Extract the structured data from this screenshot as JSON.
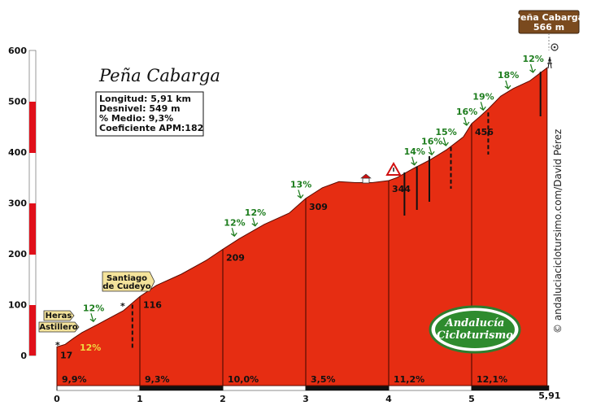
{
  "chart_data": {
    "type": "area",
    "title": "Peña Cabarga",
    "summit": {
      "name": "Peña Cabarga",
      "altitude": "566 m"
    },
    "stats": {
      "longitud": "Longitud: 5,91 km",
      "desnivel": "Desnivel: 549 m",
      "medio": "% Medio: 9,3%",
      "coeficiente": "Coeficiente APM:182"
    },
    "xlim": [
      0,
      5.91
    ],
    "ylim": [
      0,
      600
    ],
    "x_ticks": [
      "0",
      "1",
      "2",
      "3",
      "4",
      "5"
    ],
    "x_end_label": "5,91",
    "y_ticks": [
      "0",
      "100",
      "200",
      "300",
      "400",
      "500",
      "600"
    ],
    "x": [
      0,
      0.1,
      0.2,
      0.3,
      0.5,
      0.8,
      1.0,
      1.2,
      1.5,
      1.8,
      2.0,
      2.2,
      2.5,
      2.8,
      3.0,
      3.2,
      3.4,
      3.6,
      3.8,
      4.0,
      4.1,
      4.3,
      4.5,
      4.7,
      4.9,
      5.0,
      5.1,
      5.2,
      5.35,
      5.5,
      5.7,
      5.91
    ],
    "y": [
      17,
      22,
      34,
      45,
      62,
      88,
      116,
      138,
      160,
      187,
      209,
      230,
      258,
      280,
      309,
      330,
      342,
      340,
      340,
      344,
      350,
      368,
      385,
      405,
      430,
      456,
      470,
      485,
      510,
      525,
      540,
      566
    ],
    "km_labels": [
      {
        "x": 0,
        "y": 17,
        "label": "17"
      },
      {
        "x": 1,
        "y": 116,
        "label": "116"
      },
      {
        "x": 2,
        "y": 209,
        "label": "209"
      },
      {
        "x": 3,
        "y": 309,
        "label": "309"
      },
      {
        "x": 4,
        "y": 344,
        "label": "344"
      },
      {
        "x": 5,
        "y": 456,
        "label": "456"
      }
    ],
    "segment_gradients": [
      "9,9%",
      "9,3%",
      "10,0%",
      "3,5%",
      "11,2%",
      "12,1%"
    ],
    "slope_annotations": [
      {
        "x": 0.45,
        "y": 62,
        "label": "12%"
      },
      {
        "x": 2.15,
        "y": 230,
        "label": "12%"
      },
      {
        "x": 2.4,
        "y": 250,
        "label": "12%"
      },
      {
        "x": 2.95,
        "y": 305,
        "label": "13%"
      },
      {
        "x": 4.32,
        "y": 370,
        "label": "14%"
      },
      {
        "x": 4.53,
        "y": 390,
        "label": "16%"
      },
      {
        "x": 4.7,
        "y": 408,
        "label": "15%"
      },
      {
        "x": 4.95,
        "y": 448,
        "label": "16%"
      },
      {
        "x": 5.15,
        "y": 478,
        "label": "19%"
      },
      {
        "x": 5.45,
        "y": 520,
        "label": "18%"
      },
      {
        "x": 5.75,
        "y": 552,
        "label": "12%"
      }
    ],
    "start_slope_label": "12%",
    "places": [
      {
        "name": "Heras",
        "x": 0.05,
        "y": 17
      },
      {
        "name": "Astillero",
        "x": 0.05,
        "y": 17
      },
      {
        "name": "Santiago de Cudeyo",
        "x": 0.85,
        "y": 100
      }
    ],
    "place_lines": [
      "Santiago",
      "de Cudeyo"
    ],
    "side_credit": "© andaluciaciclotursimo.com/David Pérez",
    "logo_lines": [
      "Andalucía",
      "Cicloturismo"
    ],
    "colors": {
      "fill": "#e62d12",
      "axis_band": "#e0101a",
      "annotation": "#1e7d1e",
      "summit_badge": "#7a4a1e",
      "place_badge": "#f4e39b"
    }
  }
}
